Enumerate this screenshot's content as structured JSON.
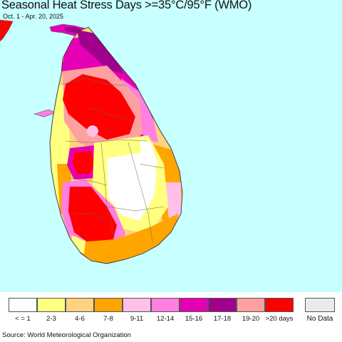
{
  "title": "Seasonal Heat Stress Days >=35°C/95°F (WMO)",
  "subtitle": "Oct. 1 - Apr. 20, 2025",
  "source": "Source: World Meteorological Organization",
  "legend": {
    "items": [
      {
        "label": "< = 1",
        "color": "#ffffff"
      },
      {
        "label": "2-3",
        "color": "#ffff80"
      },
      {
        "label": "4-6",
        "color": "#ffd27f"
      },
      {
        "label": "7-8",
        "color": "#ffa500"
      },
      {
        "label": "9-11",
        "color": "#ffc0e8"
      },
      {
        "label": "12-14",
        "color": "#ff80e0"
      },
      {
        "label": "15-16",
        "color": "#e600b4"
      },
      {
        "label": "17-18",
        "color": "#a0008c"
      },
      {
        "label": "19-20",
        "color": "#ffa0a0"
      },
      {
        "label": ">20 days",
        "color": "#ff0000"
      }
    ],
    "no_data": {
      "label": "No Data",
      "color": "#ebebeb"
    }
  },
  "colors": {
    "ocean": "#c8ffff",
    "border": "#555555"
  }
}
